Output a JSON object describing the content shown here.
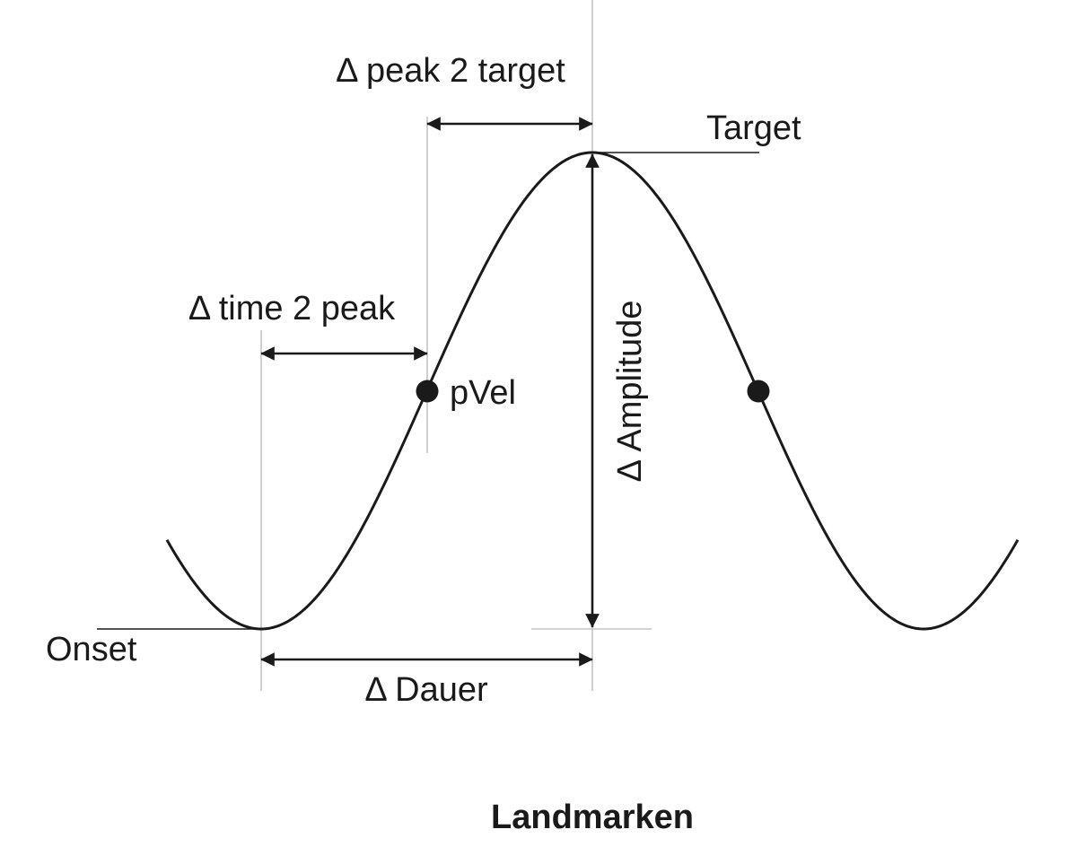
{
  "diagram": {
    "labels": {
      "peak_to_target": "Δ peak 2 target",
      "target": "Target",
      "time_to_peak": "Δ time 2 peak",
      "pvel": "pVel",
      "amplitude": "Δ Amplitude",
      "onset": "Onset",
      "duration": "Δ Dauer"
    },
    "caption": "Landmarken"
  }
}
